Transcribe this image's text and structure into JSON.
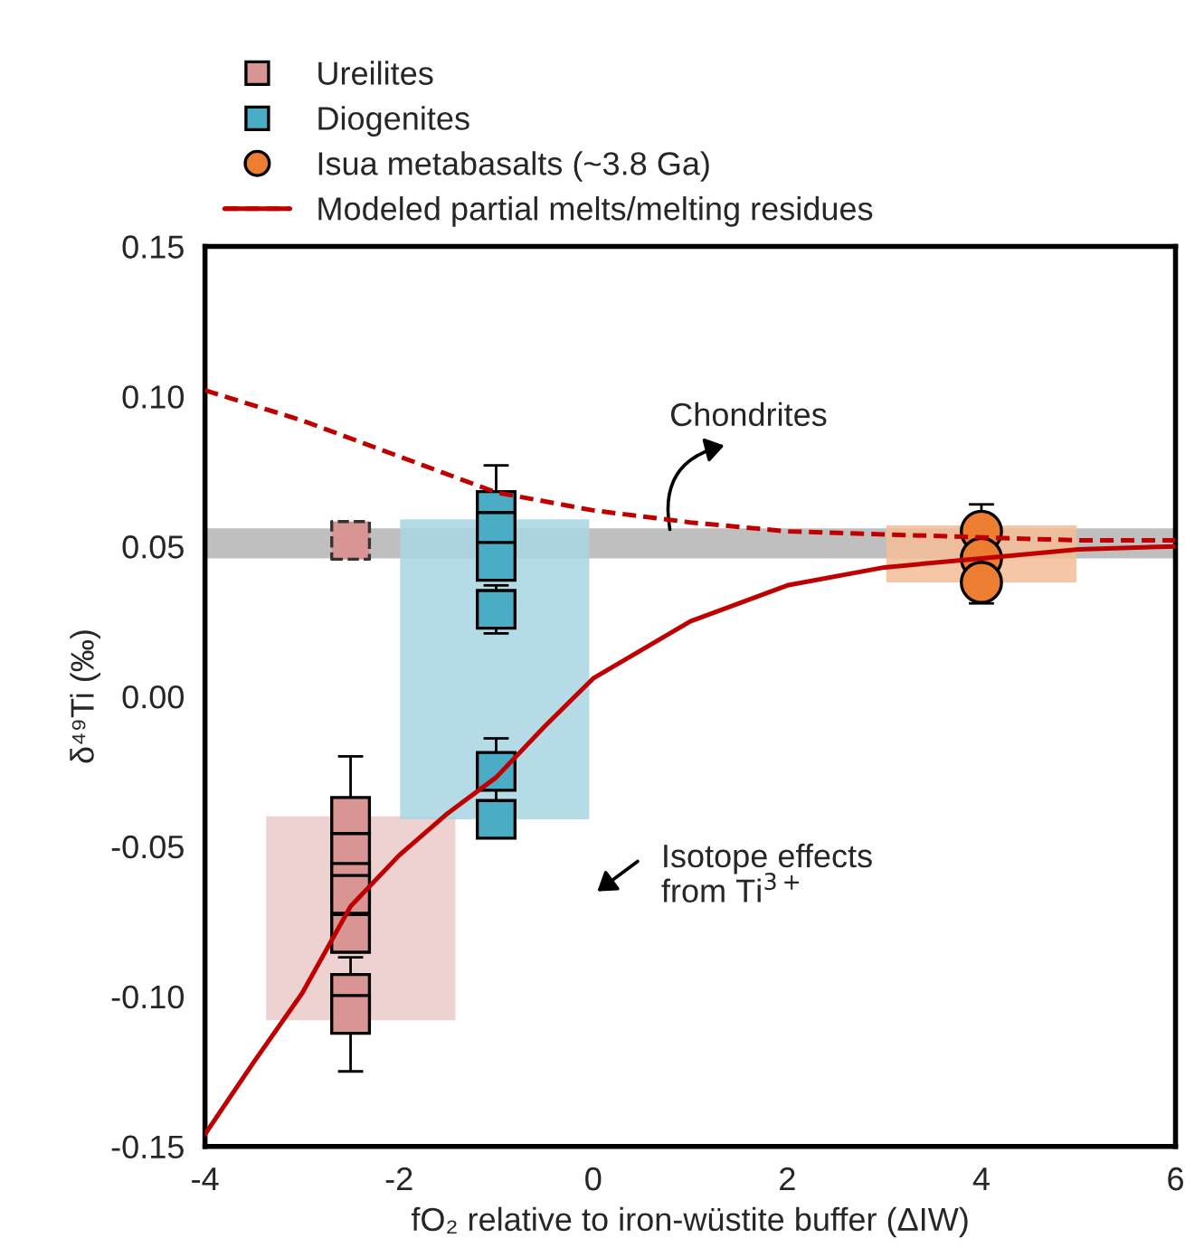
{
  "chart_data": {
    "type": "scatter",
    "xlabel": "fO₂ relative to iron-wüstite buffer (ΔIW)",
    "ylabel": "δ⁴⁹Ti (‰)",
    "xlim": [
      -4,
      6
    ],
    "xticks": [
      -4,
      -2,
      0,
      2,
      4,
      6
    ],
    "ylim": [
      -0.15,
      0.15
    ],
    "yticks": [
      {
        "value": -0.15,
        "label": "-0.15"
      },
      {
        "value": -0.1,
        "label": "-0.10"
      },
      {
        "value": -0.05,
        "label": "-0.05"
      },
      {
        "value": 0,
        "label": "0.00"
      },
      {
        "value": 0.05,
        "label": "0.05"
      },
      {
        "value": 0.1,
        "label": "0.10"
      },
      {
        "value": 0.15,
        "label": "0.15"
      }
    ],
    "grid": false,
    "legend": "top",
    "bands": [
      {
        "axis": "y",
        "from": 0.046,
        "to": 0.056,
        "color": "#bfbfbf"
      }
    ],
    "series": [
      {
        "type": "area",
        "color": "#ebc9c9",
        "x": [
          -3.37,
          -3.37,
          -1.42,
          -1.42
        ],
        "values": [
          -0.108,
          -0.04,
          -0.04,
          -0.108
        ]
      },
      {
        "type": "area",
        "color": "#a8d5e2",
        "x": [
          -1.99,
          -1.99,
          -0.04,
          -0.04
        ],
        "values": [
          -0.041,
          0.059,
          0.059,
          -0.041
        ]
      },
      {
        "type": "area",
        "color": "#f5bd98",
        "x": [
          3.02,
          3.02,
          4.98,
          4.98
        ],
        "values": [
          0.038,
          0.057,
          0.057,
          0.038
        ]
      },
      {
        "name": "Modeled partial melts/melting residues",
        "type": "line",
        "line_style": "dashed",
        "color": "#c00000",
        "x": [
          -4,
          -3,
          -2,
          -1,
          0,
          1,
          2,
          3,
          4,
          5,
          6
        ],
        "values": [
          0.102,
          0.092,
          0.08,
          0.068,
          0.062,
          0.058,
          0.055,
          0.054,
          0.053,
          0.052,
          0.052
        ]
      },
      {
        "type": "line",
        "line_style": "solid",
        "color": "#c00000",
        "x": [
          -4,
          -3.5,
          -3,
          -2.5,
          -2,
          -1.5,
          -1,
          -0.5,
          0,
          1,
          2,
          3,
          4,
          5,
          6
        ],
        "values": [
          -0.146,
          -0.122,
          -0.099,
          -0.07,
          -0.053,
          -0.039,
          -0.027,
          -0.01,
          0.006,
          0.025,
          0.037,
          0.043,
          0.046,
          0.049,
          0.05
        ]
      },
      {
        "marker": "square",
        "line_style": "dashed",
        "color": "#d99594",
        "x": [
          -2.5
        ],
        "values": [
          0.052
        ]
      },
      {
        "name": "Ureilites",
        "marker": "square",
        "color": "#d99594",
        "x": [
          -2.5,
          -2.5,
          -2.5,
          -2.5,
          -2.5,
          -2.5,
          -2.5
        ],
        "values": [
          -0.04,
          -0.052,
          -0.062,
          -0.066,
          -0.079,
          -0.099,
          -0.106
        ],
        "errors": [
          0.02,
          null,
          null,
          null,
          null,
          null,
          0.019
        ]
      },
      {
        "name": "Diogenites",
        "marker": "square",
        "color": "#4bacc6",
        "x": [
          -1,
          -1,
          -1,
          -1,
          -1,
          -1
        ],
        "values": [
          0.062,
          0.055,
          0.045,
          0.029,
          -0.025,
          -0.041
        ],
        "errors": [
          0.015,
          null,
          null,
          0.008,
          0.011,
          null
        ]
      },
      {
        "name": "Isua metabasalts (~3.8 Ga)",
        "marker": "circle",
        "color": "#ed7d31",
        "x": [
          4,
          4,
          4
        ],
        "values": [
          0.055,
          0.046,
          0.038
        ],
        "errors": [
          0.009,
          null,
          0.007
        ]
      }
    ],
    "annotations": [
      "Chondrites",
      "Isotope effects\nfrom Ti$^{3+}$"
    ]
  }
}
